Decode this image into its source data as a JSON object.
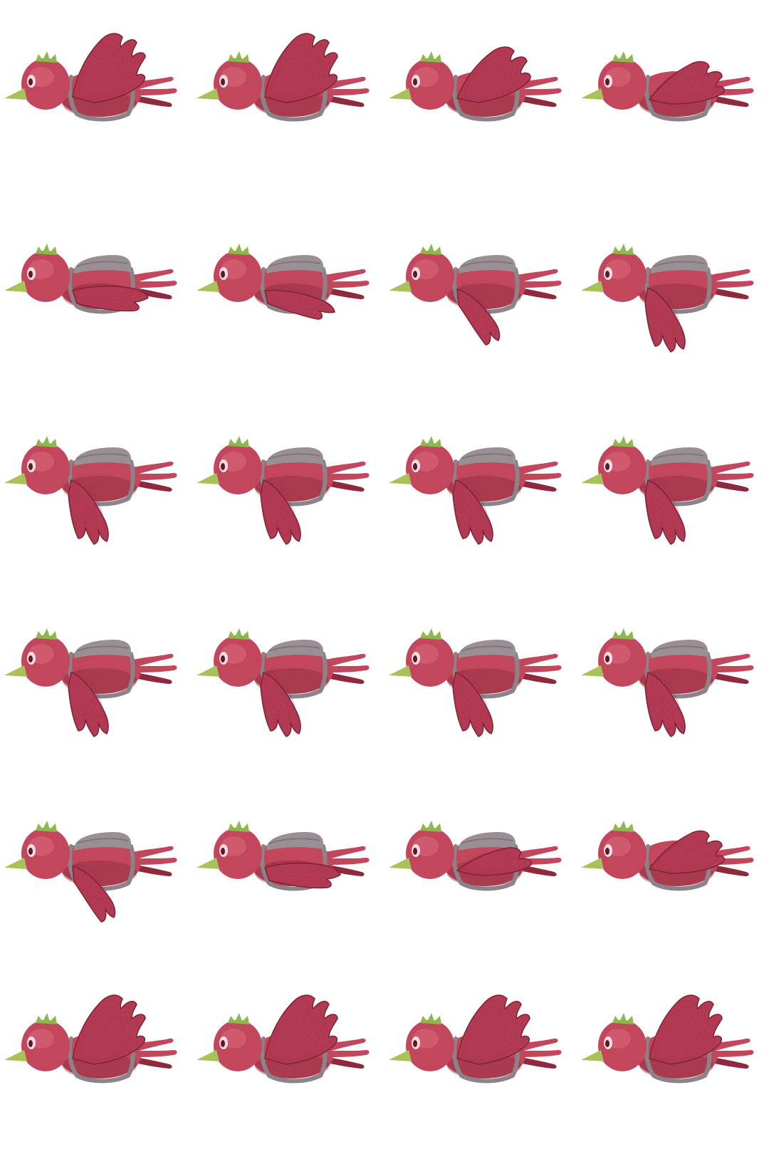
{
  "sprite_sheet": {
    "columns": 4,
    "rows": 6,
    "background": "#ffffff",
    "colors": {
      "body": "#c2475c",
      "body_shade": "#8f2a3e",
      "body_light": "#dc6b7e",
      "wing": "#b23a52",
      "wing_dark": "#7e2337",
      "wing_feather": "#9a2d44",
      "beak": "#a8c25a",
      "crest": "#8db84a",
      "harness": "#8c8389",
      "harness_dark": "#6e656b",
      "pack_top": "#9a8f95",
      "eye_white": "#f2dde2",
      "eye_dark": "#5c1a2a"
    },
    "character": "red-bird-with-harness",
    "frames": [
      {
        "wing": "up-high"
      },
      {
        "wing": "up-high"
      },
      {
        "wing": "up-mid"
      },
      {
        "wing": "up-low"
      },
      {
        "wing": "folded"
      },
      {
        "wing": "folded-down"
      },
      {
        "wing": "down"
      },
      {
        "wing": "down-full"
      },
      {
        "wing": "down-full"
      },
      {
        "wing": "down-full"
      },
      {
        "wing": "down-full"
      },
      {
        "wing": "down-full"
      },
      {
        "wing": "down-full"
      },
      {
        "wing": "down-full"
      },
      {
        "wing": "down-full"
      },
      {
        "wing": "down-full"
      },
      {
        "wing": "down"
      },
      {
        "wing": "folded"
      },
      {
        "wing": "mid"
      },
      {
        "wing": "up-low"
      },
      {
        "wing": "up-high"
      },
      {
        "wing": "up-high"
      },
      {
        "wing": "up-high"
      },
      {
        "wing": "up-high"
      }
    ]
  }
}
